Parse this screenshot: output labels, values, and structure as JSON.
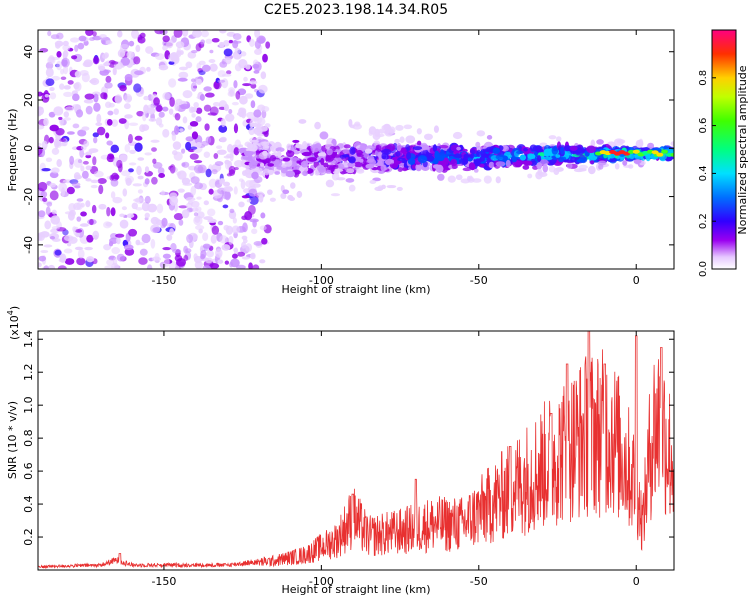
{
  "title": "C2E5.2023.198.14.34.R05",
  "chart_data": [
    {
      "type": "heatmap",
      "name": "spectrogram",
      "xlabel": "Height of straight line (km)",
      "ylabel": "Frequency (Hz)",
      "xlim": [
        -190,
        12
      ],
      "ylim": [
        -50,
        49
      ],
      "xticks": [
        -150,
        -100,
        -50,
        0
      ],
      "xtick_labels": [
        "-150",
        "-100",
        "-50",
        "0"
      ],
      "yticks": [
        -40,
        -20,
        0,
        20,
        40
      ],
      "ytick_labels": [
        "-40",
        "-20",
        "0",
        "20",
        "40"
      ],
      "colorbar": {
        "label": "Normalized spectral amplitude",
        "range": [
          0,
          1
        ],
        "ticks": [
          0.0,
          0.2,
          0.4,
          0.6,
          0.8
        ],
        "tick_labels": [
          "0.0",
          "0.2",
          "0.4",
          "0.6",
          "0.8"
        ]
      },
      "band": {
        "center_freq_start": -5,
        "center_freq_end": -2,
        "scatter_region_km": [
          -190,
          -125
        ],
        "band_region_km": [
          -125,
          12
        ]
      }
    },
    {
      "type": "line",
      "name": "snr",
      "xlabel": "Height of straight line (km)",
      "ylabel": "SNR (10 * v/v)",
      "yscale_label": "(x10",
      "yscale_exp": "4",
      "yscale_close": ")",
      "xlim": [
        -190,
        12
      ],
      "ylim": [
        0,
        1.45
      ],
      "xticks": [
        -150,
        -100,
        -50,
        0
      ],
      "xtick_labels": [
        "-150",
        "-100",
        "-50",
        "0"
      ],
      "yticks": [
        0.2,
        0.4,
        0.6,
        0.8,
        1.0,
        1.2,
        1.4
      ],
      "ytick_labels": [
        "0.2",
        "0.4",
        "0.6",
        "0.8",
        "1.0",
        "1.2",
        "1.4"
      ],
      "color": "#e83030",
      "trend_points": [
        [
          -190,
          0.02
        ],
        [
          -170,
          0.03
        ],
        [
          -165,
          0.06
        ],
        [
          -160,
          0.03
        ],
        [
          -130,
          0.03
        ],
        [
          -115,
          0.06
        ],
        [
          -105,
          0.1
        ],
        [
          -95,
          0.2
        ],
        [
          -90,
          0.35
        ],
        [
          -85,
          0.22
        ],
        [
          -75,
          0.25
        ],
        [
          -65,
          0.3
        ],
        [
          -55,
          0.3
        ],
        [
          -45,
          0.45
        ],
        [
          -35,
          0.6
        ],
        [
          -25,
          0.75
        ],
        [
          -15,
          0.9
        ],
        [
          -8,
          0.9
        ],
        [
          -3,
          0.7
        ],
        [
          0,
          0.55
        ],
        [
          2,
          0.3
        ],
        [
          5,
          0.9
        ],
        [
          8,
          1.0
        ],
        [
          10,
          0.8
        ],
        [
          12,
          0.7
        ]
      ],
      "peaks": [
        [
          -164,
          0.1
        ],
        [
          -90,
          0.46
        ],
        [
          -70,
          0.55
        ],
        [
          -40,
          0.75
        ],
        [
          -27,
          0.95
        ],
        [
          -22,
          1.25
        ],
        [
          -15,
          1.45
        ],
        [
          -10,
          1.25
        ],
        [
          0,
          1.42
        ],
        [
          8,
          1.35
        ]
      ]
    }
  ]
}
